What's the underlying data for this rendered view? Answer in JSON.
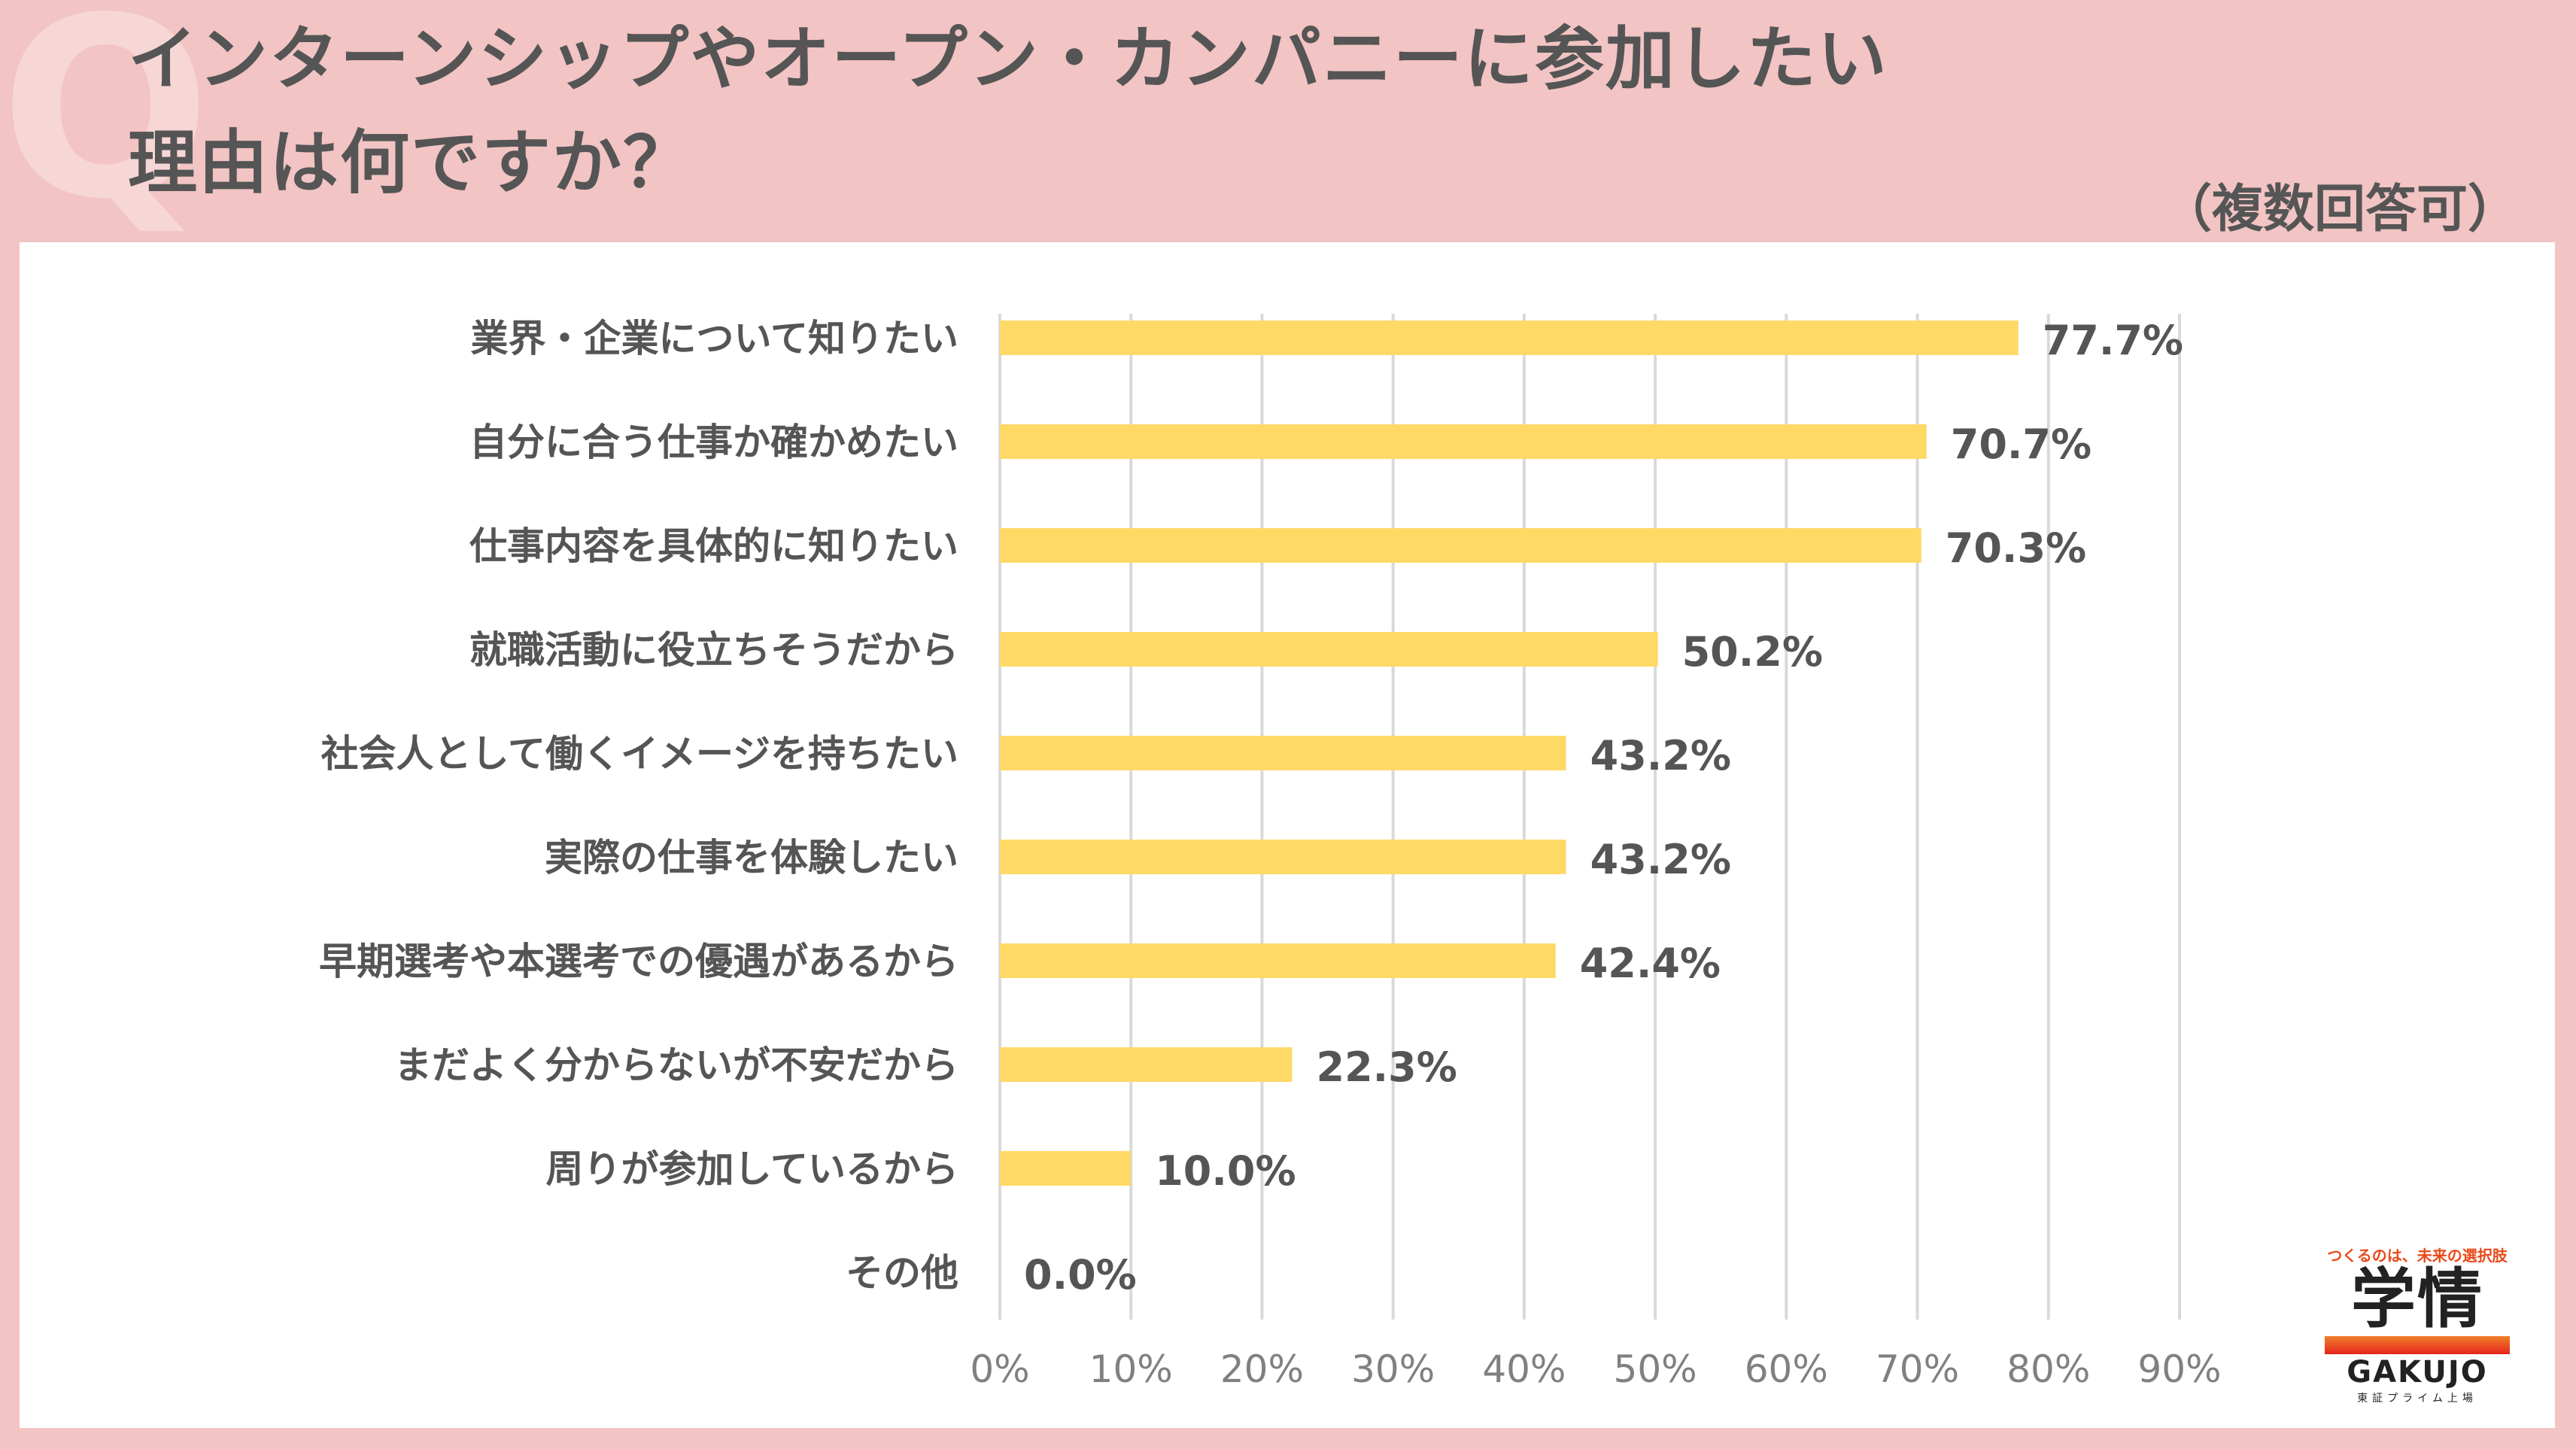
{
  "header": {
    "q_mark": "Q",
    "title_line1": "インターンシップやオープン・カンパニーに参加したい",
    "title_line2": "理由は何ですか？",
    "note": "（複数回答可）"
  },
  "logo": {
    "tagline": "つくるのは、未来の選択肢",
    "kanji": "学情",
    "brand": "GAKUJO",
    "listing": "東証プライム上場"
  },
  "colors": {
    "background": "#f2c4c4",
    "bar": "#ffd966",
    "text": "#555555",
    "grid": "#d9d9d9",
    "accent": "#e84a1a"
  },
  "chart_data": {
    "type": "bar",
    "orientation": "horizontal",
    "categories": [
      "業界・企業について知りたい",
      "自分に合う仕事か確かめたい",
      "仕事内容を具体的に知りたい",
      "就職活動に役立ちそうだから",
      "社会人として働くイメージを持ちたい",
      "実際の仕事を体験したい",
      "早期選考や本選考での優遇があるから",
      "まだよく分からないが不安だから",
      "周りが参加しているから",
      "その他"
    ],
    "values": [
      77.7,
      70.7,
      70.3,
      50.2,
      43.2,
      43.2,
      42.4,
      22.3,
      10.0,
      0.0
    ],
    "data_labels": [
      "77.7%",
      "70.7%",
      "70.3%",
      "50.2%",
      "43.2%",
      "43.2%",
      "42.4%",
      "22.3%",
      "10.0%",
      "0.0%"
    ],
    "xlim": [
      0,
      90
    ],
    "xticks": [
      0,
      10,
      20,
      30,
      40,
      50,
      60,
      70,
      80,
      90
    ],
    "xtick_labels": [
      "0%",
      "10%",
      "20%",
      "30%",
      "40%",
      "50%",
      "60%",
      "70%",
      "80%",
      "90%"
    ],
    "grid": "vertical",
    "legend": "none"
  }
}
